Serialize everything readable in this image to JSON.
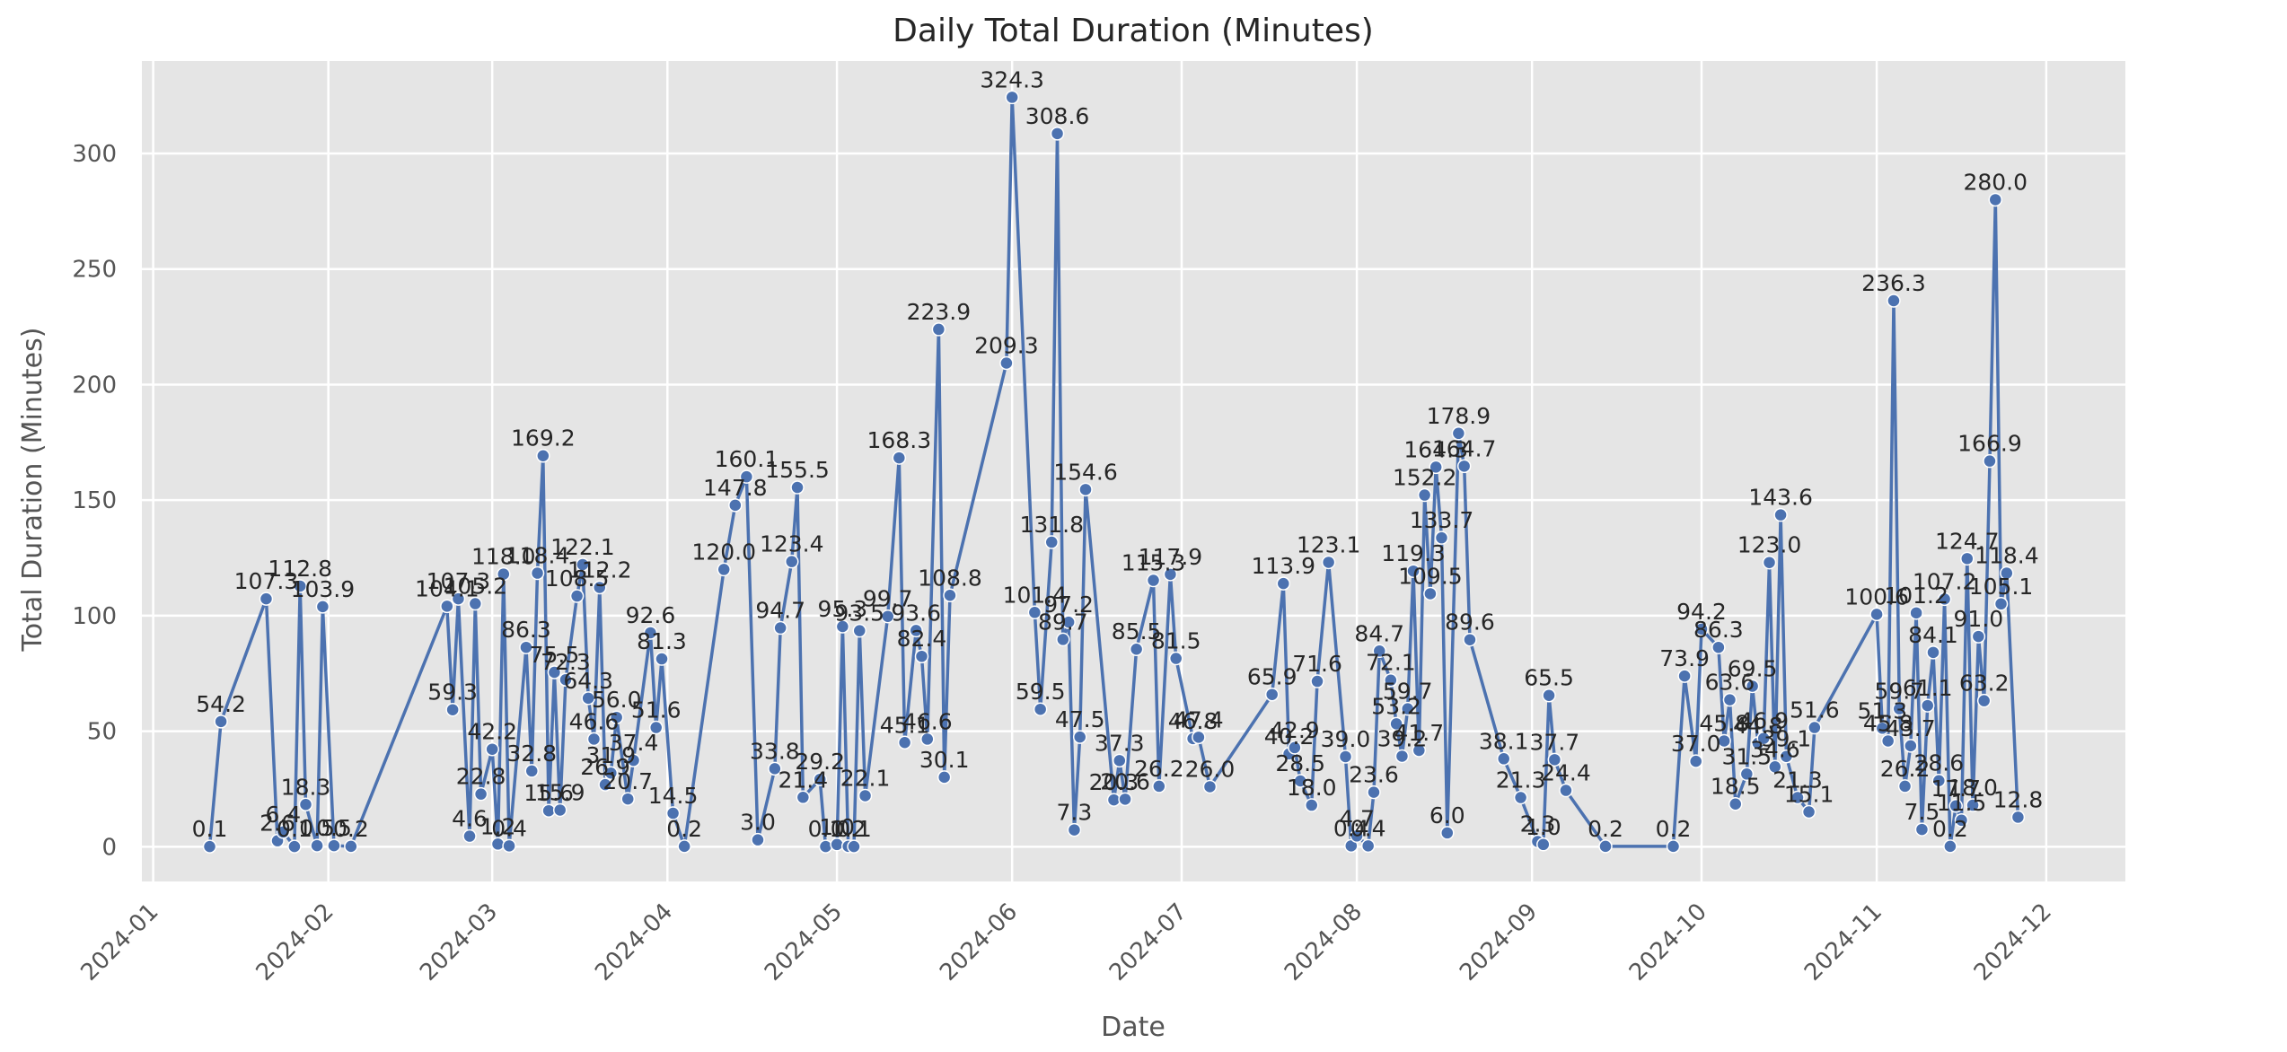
{
  "chart_data": {
    "type": "line",
    "title": "Daily Total Duration (Minutes)",
    "xlabel": "Date",
    "ylabel": "Total Duration (Minutes)",
    "x_ticks": [
      "2024-01",
      "2024-02",
      "2024-03",
      "2024-04",
      "2024-05",
      "2024-06",
      "2024-07",
      "2024-08",
      "2024-09",
      "2024-10",
      "2024-11",
      "2024-12"
    ],
    "y_ticks": [
      0,
      50,
      100,
      150,
      200,
      250,
      300
    ],
    "xlim": [
      "2023-12-30",
      "2024-12-15"
    ],
    "ylim": [
      -15,
      340
    ],
    "grid": true,
    "style": "ggplot",
    "colors": {
      "line": "#4c72b0",
      "plot_bg": "#e5e5e5",
      "grid": "#ffffff"
    },
    "series": [
      {
        "points": [
          [
            "2024-01-11",
            0.1
          ],
          [
            "2024-01-13",
            54.2
          ],
          [
            "2024-01-21",
            107.3
          ],
          [
            "2024-01-23",
            2.6
          ],
          [
            "2024-01-24",
            6.4
          ],
          [
            "2024-01-26",
            0.1
          ],
          [
            "2024-01-27",
            112.8
          ],
          [
            "2024-01-28",
            18.3
          ],
          [
            "2024-01-30",
            0.5
          ],
          [
            "2024-01-31",
            103.9
          ],
          [
            "2024-02-02",
            0.5
          ],
          [
            "2024-02-05",
            0.2
          ],
          [
            "2024-02-22",
            104.1
          ],
          [
            "2024-02-23",
            59.3
          ],
          [
            "2024-02-24",
            107.3
          ],
          [
            "2024-02-26",
            4.6
          ],
          [
            "2024-02-27",
            105.2
          ],
          [
            "2024-02-28",
            22.8
          ],
          [
            "2024-03-01",
            42.2
          ],
          [
            "2024-03-02",
            1.2
          ],
          [
            "2024-03-03",
            118.0
          ],
          [
            "2024-03-04",
            0.4
          ],
          [
            "2024-03-07",
            86.3
          ],
          [
            "2024-03-08",
            32.8
          ],
          [
            "2024-03-09",
            118.4
          ],
          [
            "2024-03-10",
            169.2
          ],
          [
            "2024-03-11",
            15.6
          ],
          [
            "2024-03-12",
            75.5
          ],
          [
            "2024-03-13",
            15.9
          ],
          [
            "2024-03-14",
            72.3
          ],
          [
            "2024-03-16",
            108.5
          ],
          [
            "2024-03-17",
            122.1
          ],
          [
            "2024-03-18",
            64.3
          ],
          [
            "2024-03-19",
            46.6
          ],
          [
            "2024-03-20",
            112.2
          ],
          [
            "2024-03-21",
            26.9
          ],
          [
            "2024-03-22",
            31.9
          ],
          [
            "2024-03-23",
            56.0
          ],
          [
            "2024-03-25",
            20.7
          ],
          [
            "2024-03-26",
            37.4
          ],
          [
            "2024-03-29",
            92.6
          ],
          [
            "2024-03-30",
            51.6
          ],
          [
            "2024-03-31",
            81.3
          ],
          [
            "2024-04-02",
            14.5
          ],
          [
            "2024-04-04",
            0.2
          ],
          [
            "2024-04-11",
            120.0
          ],
          [
            "2024-04-13",
            147.8
          ],
          [
            "2024-04-15",
            160.1
          ],
          [
            "2024-04-17",
            3.0
          ],
          [
            "2024-04-20",
            33.8
          ],
          [
            "2024-04-21",
            94.7
          ],
          [
            "2024-04-23",
            123.4
          ],
          [
            "2024-04-24",
            155.5
          ],
          [
            "2024-04-25",
            21.4
          ],
          [
            "2024-04-28",
            29.2
          ],
          [
            "2024-04-29",
            0.1
          ],
          [
            "2024-05-01",
            1.0
          ],
          [
            "2024-05-02",
            95.3
          ],
          [
            "2024-05-03",
            0.2
          ],
          [
            "2024-05-04",
            0.1
          ],
          [
            "2024-05-05",
            93.5
          ],
          [
            "2024-05-06",
            22.1
          ],
          [
            "2024-05-10",
            99.7
          ],
          [
            "2024-05-12",
            168.3
          ],
          [
            "2024-05-13",
            45.1
          ],
          [
            "2024-05-15",
            93.6
          ],
          [
            "2024-05-16",
            82.4
          ],
          [
            "2024-05-17",
            46.6
          ],
          [
            "2024-05-19",
            223.9
          ],
          [
            "2024-05-20",
            30.1
          ],
          [
            "2024-05-21",
            108.8
          ],
          [
            "2024-05-31",
            209.3
          ],
          [
            "2024-06-01",
            324.3
          ],
          [
            "2024-06-05",
            101.4
          ],
          [
            "2024-06-06",
            59.5
          ],
          [
            "2024-06-08",
            131.8
          ],
          [
            "2024-06-09",
            308.6
          ],
          [
            "2024-06-10",
            89.7
          ],
          [
            "2024-06-11",
            97.2
          ],
          [
            "2024-06-12",
            7.3
          ],
          [
            "2024-06-13",
            47.5
          ],
          [
            "2024-06-14",
            154.6
          ],
          [
            "2024-06-19",
            20.3
          ],
          [
            "2024-06-20",
            37.3
          ],
          [
            "2024-06-21",
            20.6
          ],
          [
            "2024-06-23",
            85.5
          ],
          [
            "2024-06-26",
            115.3
          ],
          [
            "2024-06-27",
            26.2
          ],
          [
            "2024-06-29",
            117.9
          ],
          [
            "2024-06-30",
            81.5
          ],
          [
            "2024-07-03",
            46.8
          ],
          [
            "2024-07-04",
            47.4
          ],
          [
            "2024-07-06",
            26.0
          ],
          [
            "2024-07-17",
            65.9
          ],
          [
            "2024-07-19",
            113.9
          ],
          [
            "2024-07-20",
            40.2
          ],
          [
            "2024-07-21",
            42.9
          ],
          [
            "2024-07-22",
            28.5
          ],
          [
            "2024-07-24",
            18.0
          ],
          [
            "2024-07-25",
            71.6
          ],
          [
            "2024-07-27",
            123.1
          ],
          [
            "2024-07-30",
            39.0
          ],
          [
            "2024-07-31",
            0.4
          ],
          [
            "2024-08-01",
            4.7
          ],
          [
            "2024-08-03",
            0.4
          ],
          [
            "2024-08-04",
            23.6
          ],
          [
            "2024-08-05",
            84.7
          ],
          [
            "2024-08-07",
            72.1
          ],
          [
            "2024-08-08",
            53.2
          ],
          [
            "2024-08-09",
            39.2
          ],
          [
            "2024-08-10",
            59.7
          ],
          [
            "2024-08-11",
            119.3
          ],
          [
            "2024-08-12",
            41.7
          ],
          [
            "2024-08-13",
            152.2
          ],
          [
            "2024-08-14",
            109.5
          ],
          [
            "2024-08-15",
            164.3
          ],
          [
            "2024-08-16",
            133.7
          ],
          [
            "2024-08-17",
            6.0
          ],
          [
            "2024-08-19",
            178.9
          ],
          [
            "2024-08-20",
            164.7
          ],
          [
            "2024-08-21",
            89.6
          ],
          [
            "2024-08-27",
            38.1
          ],
          [
            "2024-08-30",
            21.3
          ],
          [
            "2024-09-02",
            2.3
          ],
          [
            "2024-09-03",
            1.0
          ],
          [
            "2024-09-04",
            65.5
          ],
          [
            "2024-09-05",
            37.7
          ],
          [
            "2024-09-07",
            24.4
          ],
          [
            "2024-09-14",
            0.2
          ],
          [
            "2024-09-26",
            0.2
          ],
          [
            "2024-09-28",
            73.9
          ],
          [
            "2024-09-30",
            37.0
          ],
          [
            "2024-10-01",
            94.2
          ],
          [
            "2024-10-04",
            86.3
          ],
          [
            "2024-10-05",
            45.8
          ],
          [
            "2024-10-06",
            63.6
          ],
          [
            "2024-10-07",
            18.5
          ],
          [
            "2024-10-09",
            31.5
          ],
          [
            "2024-10-10",
            69.5
          ],
          [
            "2024-10-11",
            44.8
          ],
          [
            "2024-10-12",
            46.9
          ],
          [
            "2024-10-13",
            123.0
          ],
          [
            "2024-10-14",
            34.6
          ],
          [
            "2024-10-15",
            143.6
          ],
          [
            "2024-10-16",
            39.1
          ],
          [
            "2024-10-18",
            21.3
          ],
          [
            "2024-10-20",
            15.1
          ],
          [
            "2024-10-21",
            51.6
          ],
          [
            "2024-11-01",
            100.6
          ],
          [
            "2024-11-02",
            51.3
          ],
          [
            "2024-11-03",
            45.8
          ],
          [
            "2024-11-04",
            236.3
          ],
          [
            "2024-11-05",
            59.7
          ],
          [
            "2024-11-06",
            26.2
          ],
          [
            "2024-11-07",
            43.7
          ],
          [
            "2024-11-08",
            101.2
          ],
          [
            "2024-11-09",
            7.5
          ],
          [
            "2024-11-10",
            61.1
          ],
          [
            "2024-11-11",
            84.1
          ],
          [
            "2024-11-12",
            28.6
          ],
          [
            "2024-11-13",
            107.2
          ],
          [
            "2024-11-14",
            0.2
          ],
          [
            "2024-11-15",
            17.7
          ],
          [
            "2024-11-16",
            11.5
          ],
          [
            "2024-11-17",
            124.7
          ],
          [
            "2024-11-18",
            18.0
          ],
          [
            "2024-11-19",
            91.0
          ],
          [
            "2024-11-20",
            63.2
          ],
          [
            "2024-11-21",
            166.9
          ],
          [
            "2024-11-22",
            280.0
          ],
          [
            "2024-11-23",
            105.1
          ],
          [
            "2024-11-24",
            118.4
          ],
          [
            "2024-11-26",
            12.8
          ]
        ]
      }
    ]
  }
}
